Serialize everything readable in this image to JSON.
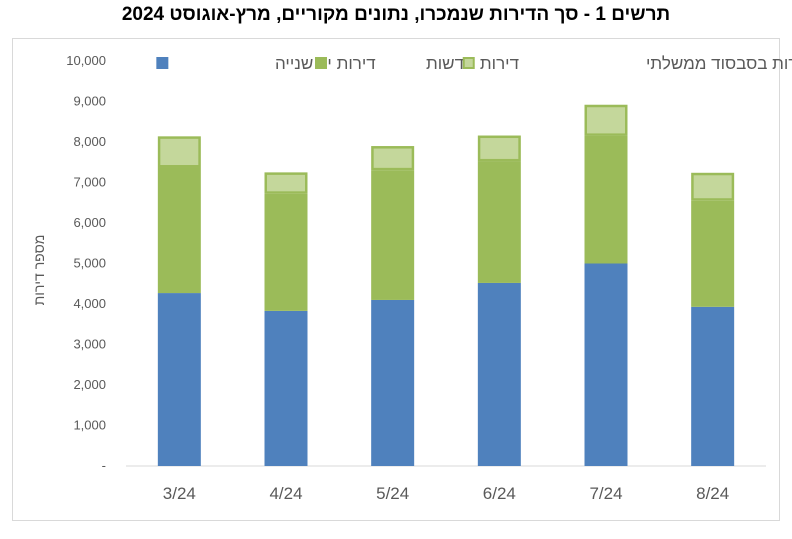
{
  "chart_data": {
    "type": "bar",
    "stacked": true,
    "title": "תרשים 1 - סך הדירות שנמכרו, נתונים מקוריים, מרץ-אוגוסט 2024",
    "xlabel": "",
    "ylabel": "מספר דירות",
    "ylim": [
      0,
      10000
    ],
    "yticks": [
      "-",
      "1,000",
      "2,000",
      "3,000",
      "4,000",
      "5,000",
      "6,000",
      "7,000",
      "8,000",
      "9,000",
      "10,000"
    ],
    "categories": [
      "3/24",
      "4/24",
      "5/24",
      "6/24",
      "7/24",
      "8/24"
    ],
    "grid": false,
    "legend_position": "top",
    "series": [
      {
        "name": "דירות יד שנייה",
        "color": "#4f81bd",
        "values": [
          4270,
          3830,
          4100,
          4520,
          5000,
          3930
        ]
      },
      {
        "name": "דירות חדשות",
        "color": "#9bbb59",
        "values": [
          3100,
          2890,
          3200,
          3000,
          3150,
          2620
        ]
      },
      {
        "name": "דירות בסבסוד ממשלתי",
        "color": "#c4d79b",
        "border": "#9bbb59",
        "values": [
          770,
          530,
          600,
          640,
          770,
          690
        ]
      }
    ]
  }
}
